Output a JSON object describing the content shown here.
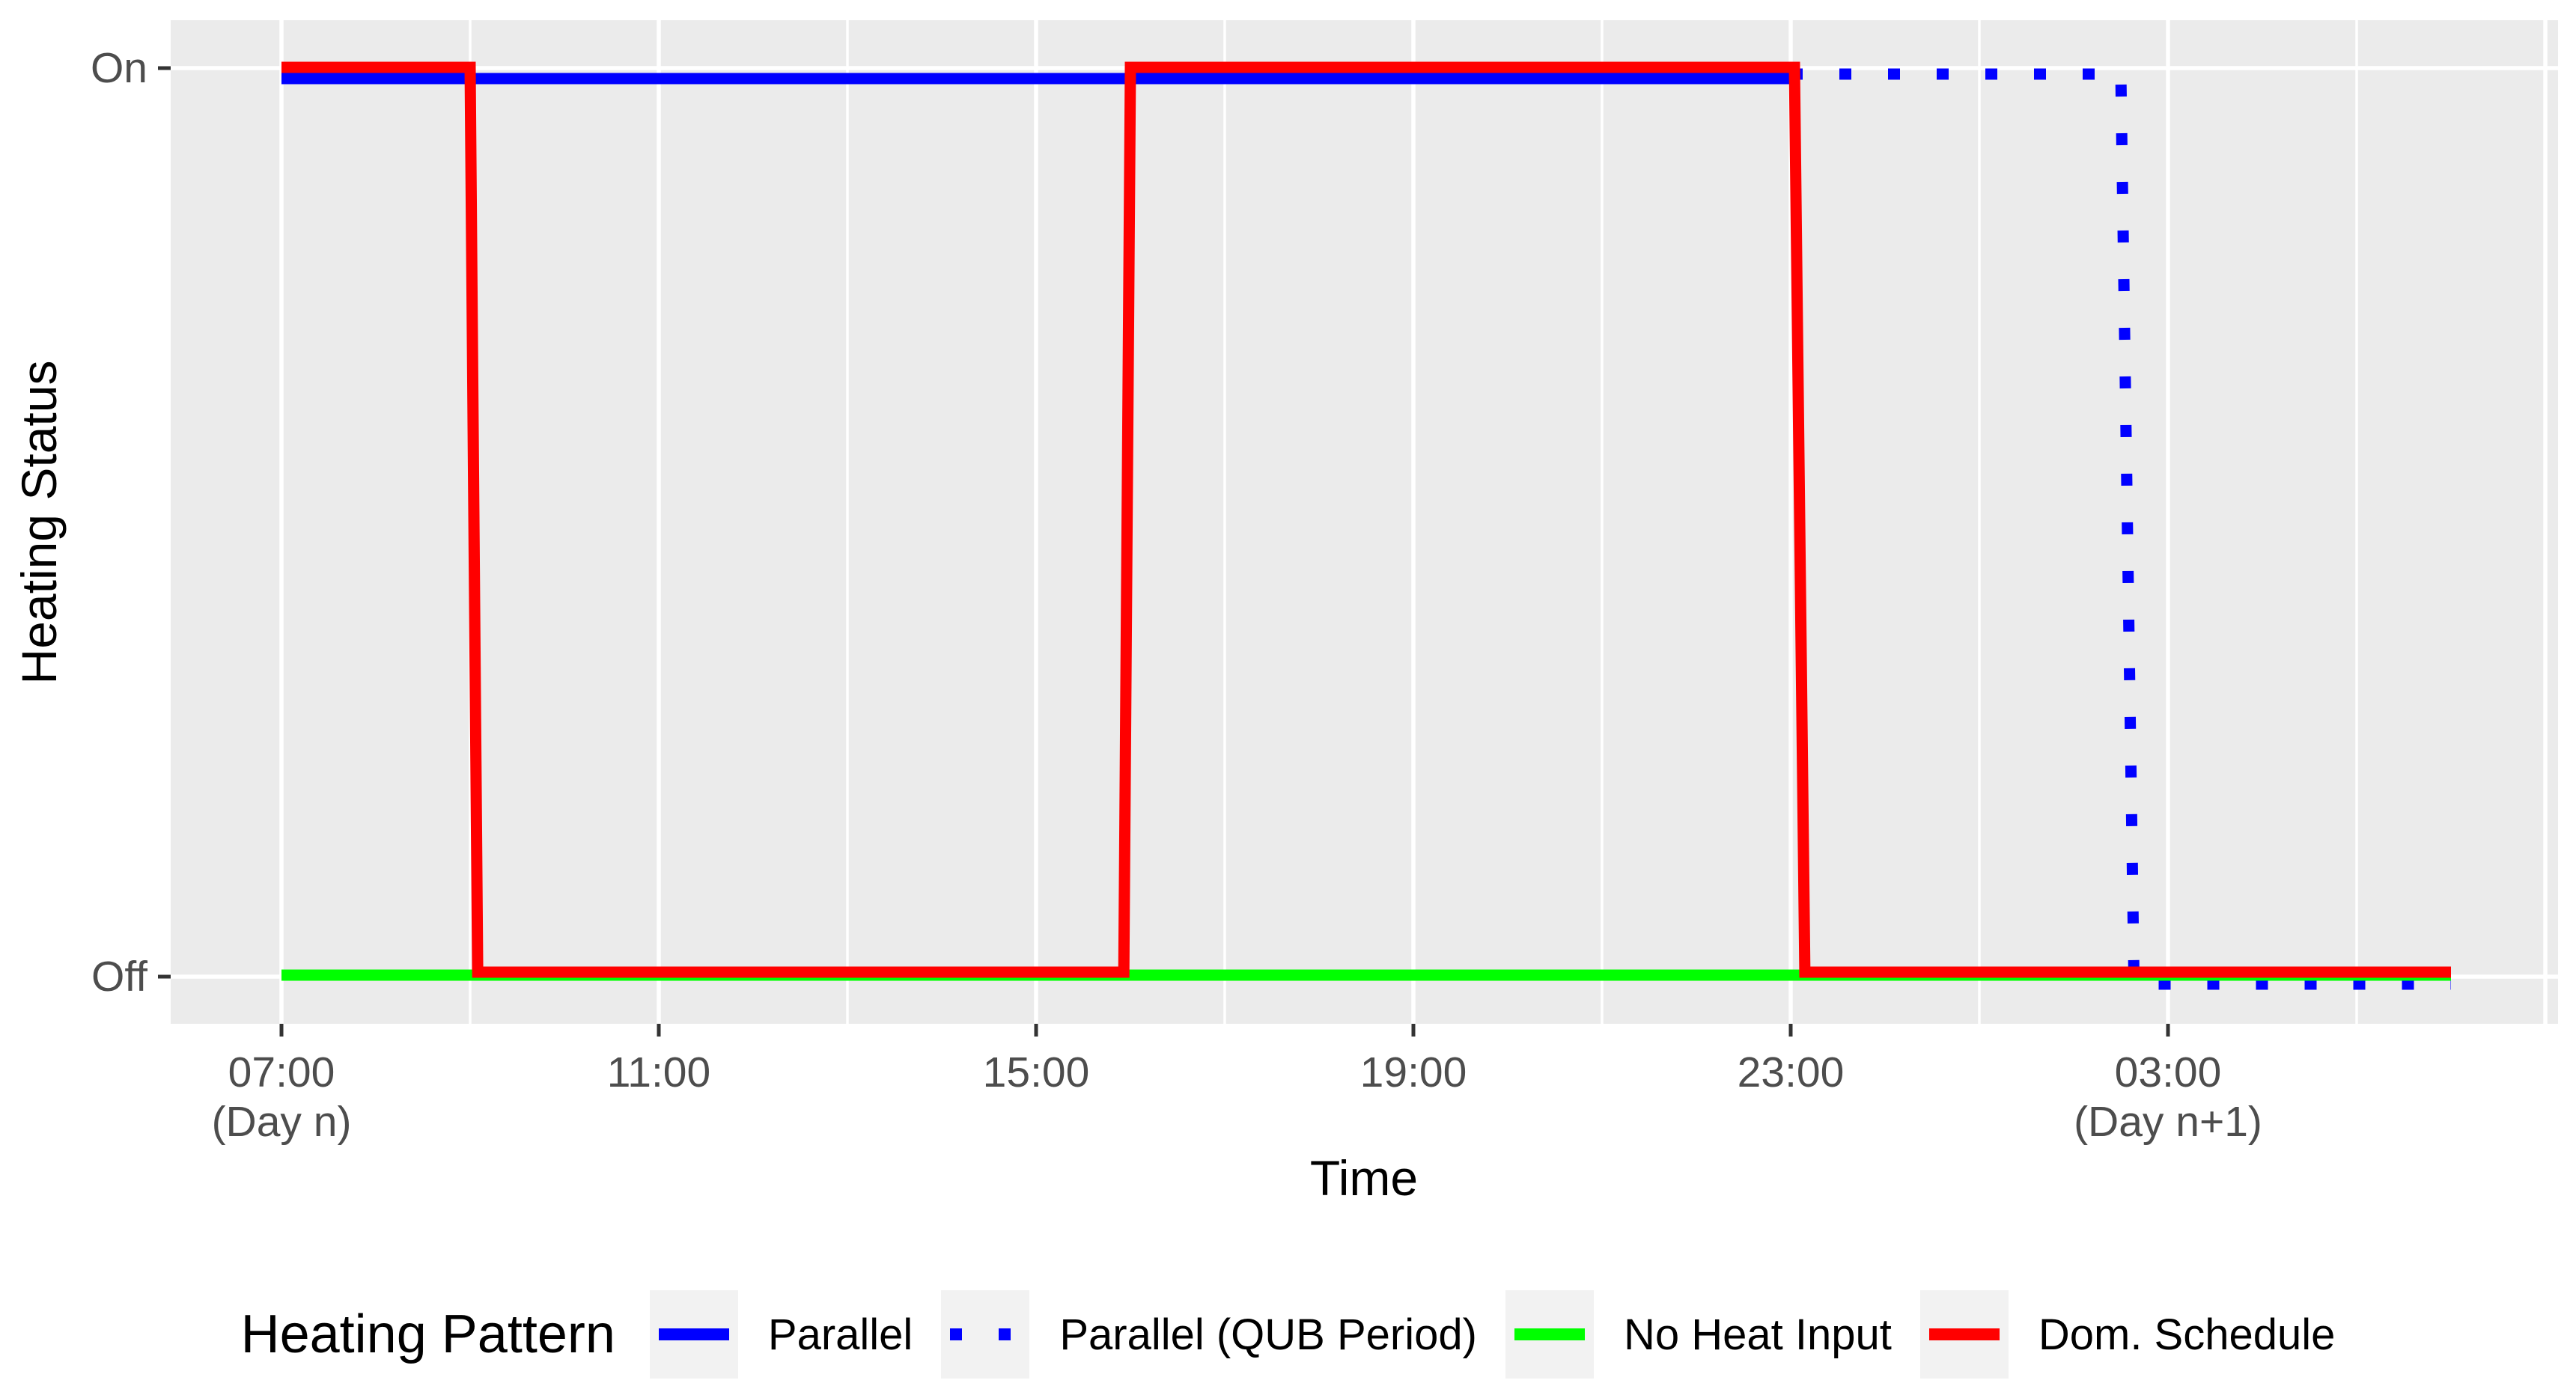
{
  "chart_data": {
    "type": "line",
    "title": "",
    "xlabel": "Time",
    "ylabel": "Heating Status",
    "y_categories": [
      "Off",
      "On"
    ],
    "x_axis": {
      "unit": "hours after 07:00 (Day n)",
      "range_hours": [
        0,
        23
      ],
      "major_ticks": [
        {
          "hour": 0,
          "label": "07:00",
          "sublabel": "(Day n)"
        },
        {
          "hour": 4,
          "label": "11:00",
          "sublabel": ""
        },
        {
          "hour": 8,
          "label": "15:00",
          "sublabel": ""
        },
        {
          "hour": 12,
          "label": "19:00",
          "sublabel": ""
        },
        {
          "hour": 16,
          "label": "23:00",
          "sublabel": ""
        },
        {
          "hour": 20,
          "label": "03:00",
          "sublabel": "(Day n+1)"
        }
      ],
      "unlabeled_major_gridline_hours": [
        24
      ],
      "minor_gridline_hours": [
        2,
        6,
        10,
        14,
        18,
        22
      ]
    },
    "grid": "on",
    "legend": {
      "title": "Heating Pattern",
      "position": "bottom"
    },
    "series": [
      {
        "name": "Parallel",
        "color": "#0000FF",
        "linetype": "solid",
        "points": [
          [
            0,
            "On"
          ],
          [
            16,
            "On"
          ]
        ]
      },
      {
        "name": "Parallel (QUB Period)",
        "color": "#0000FF",
        "linetype": "dotted",
        "points": [
          [
            16,
            "On"
          ],
          [
            19.5,
            "On"
          ],
          [
            19.64,
            "Off"
          ],
          [
            23,
            "Off"
          ]
        ]
      },
      {
        "name": "No Heat Input",
        "color": "#00FF00",
        "linetype": "solid",
        "points": [
          [
            0,
            "Off"
          ],
          [
            23,
            "Off"
          ]
        ]
      },
      {
        "name": "Dom. Schedule",
        "color": "#FF0000",
        "linetype": "solid",
        "points": [
          [
            0,
            "On"
          ],
          [
            2,
            "On"
          ],
          [
            2.08,
            "Off"
          ],
          [
            8.93,
            "Off"
          ],
          [
            9,
            "On"
          ],
          [
            16.04,
            "On"
          ],
          [
            16.15,
            "Off"
          ],
          [
            23,
            "Off"
          ]
        ]
      }
    ]
  },
  "colors": {
    "panel_background": "#EBEBEB",
    "gridline": "#FFFFFF",
    "tick_mark": "#333333",
    "tick_text": "#4D4D4D",
    "title_text": "#000000",
    "legend_key_background": "#F2F2F2",
    "blue": "#0000FF",
    "green": "#00FF00",
    "red": "#FF0000"
  }
}
